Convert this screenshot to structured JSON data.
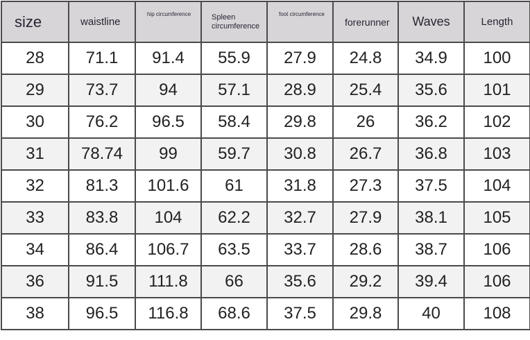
{
  "table": {
    "header": [
      "size",
      "waistline",
      "hip circumference",
      "Spleen circumference",
      "foot circumference",
      "forerunner",
      "Waves",
      "Length"
    ],
    "rows": [
      [
        "28",
        "71.1",
        "91.4",
        "55.9",
        "27.9",
        "24.8",
        "34.9",
        "100"
      ],
      [
        "29",
        "73.7",
        "94",
        "57.1",
        "28.9",
        "25.4",
        "35.6",
        "101"
      ],
      [
        "30",
        "76.2",
        "96.5",
        "58.4",
        "29.8",
        "26",
        "36.2",
        "102"
      ],
      [
        "31",
        "78.74",
        "99",
        "59.7",
        "30.8",
        "26.7",
        "36.8",
        "103"
      ],
      [
        "32",
        "81.3",
        "101.6",
        "61",
        "31.8",
        "27.3",
        "37.5",
        "104"
      ],
      [
        "33",
        "83.8",
        "104",
        "62.2",
        "32.7",
        "27.9",
        "38.1",
        "105"
      ],
      [
        "34",
        "86.4",
        "106.7",
        "63.5",
        "33.7",
        "28.6",
        "38.7",
        "106"
      ],
      [
        "36",
        "91.5",
        "111.8",
        "66",
        "35.6",
        "29.2",
        "39.4",
        "106"
      ],
      [
        "38",
        "96.5",
        "116.8",
        "68.6",
        "37.5",
        "29.8",
        "40",
        "108"
      ]
    ]
  }
}
